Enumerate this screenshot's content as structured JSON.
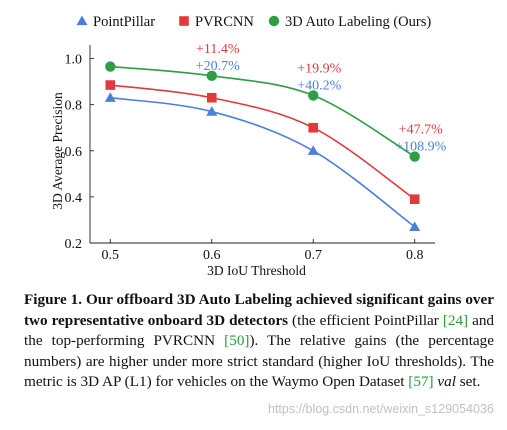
{
  "chart_data": {
    "type": "line",
    "xlabel": "3D IoU Threshold",
    "ylabel": "3D Average Precision",
    "x": [
      0.5,
      0.6,
      0.7,
      0.8
    ],
    "x_tick_labels": [
      "0.5",
      "0.6",
      "0.7",
      "0.8"
    ],
    "y_ticks": [
      0.2,
      0.4,
      0.6,
      0.8,
      1.0
    ],
    "y_tick_labels": [
      "0.2",
      "0.4",
      "0.6",
      "0.8",
      "1.0"
    ],
    "xlim": [
      0.48,
      0.82
    ],
    "ylim": [
      0.2,
      1.05
    ],
    "grid": false,
    "legend": "top",
    "series": [
      {
        "name": "PointPillar",
        "values": [
          0.83,
          0.77,
          0.6,
          0.27
        ],
        "color": "#4a7fe0",
        "marker": "triangle"
      },
      {
        "name": "PVRCNN",
        "values": [
          0.885,
          0.83,
          0.7,
          0.39
        ],
        "color": "#e03a3a",
        "marker": "square"
      },
      {
        "name": "3D Auto Labeling (Ours)",
        "values": [
          0.965,
          0.925,
          0.84,
          0.575
        ],
        "color": "#2e9e44",
        "marker": "circle"
      }
    ],
    "gains": [
      {
        "x": 0.6,
        "vs_pvrcnn": "+11.4%",
        "vs_pointpillar": "+20.7%"
      },
      {
        "x": 0.7,
        "vs_pvrcnn": "+19.9%",
        "vs_pointpillar": "+40.2%"
      },
      {
        "x": 0.8,
        "vs_pvrcnn": "+47.7%",
        "vs_pointpillar": "+108.9%"
      }
    ],
    "gain_colors": {
      "vs_pvrcnn": "#e03a3a",
      "vs_pointpillar": "#4a7fe0"
    }
  },
  "caption": {
    "label": "Figure 1.",
    "bold": "Our offboard 3D Auto Labeling achieved significant gains over two representative onboard 3D detectors",
    "text1": "(the efficient PointPillar",
    "ref1": "[24]",
    "text2": "and the top-performing PVRCNN",
    "ref2": "[50]",
    "text3": "). The relative gains (the percentage numbers) are higher under more strict standard (higher IoU thresholds). The metric is 3D AP (L1) for vehicles on the Waymo Open Dataset",
    "ref3": "[57]",
    "italic": "val",
    "text4": "set."
  },
  "watermark": "https://blog.csdn.net/weixin_s129054036"
}
